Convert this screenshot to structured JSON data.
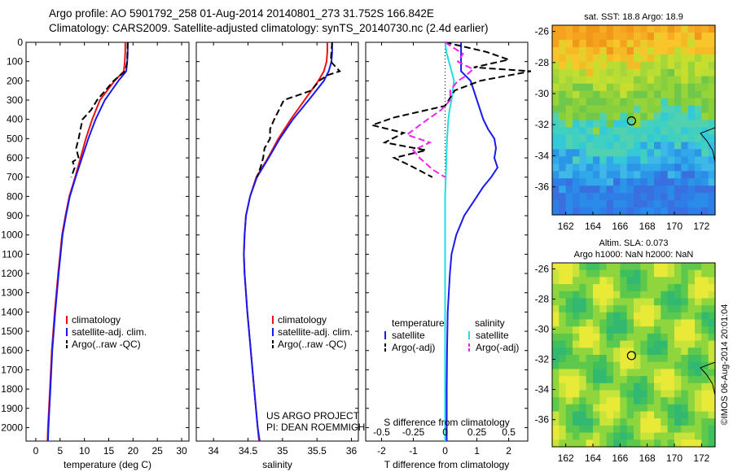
{
  "header": {
    "line1": "Argo profile: AO 5901792_258 01-Aug-2014 20140801_273 31.752S 166.842E",
    "line2": "Climatology: CARS2009. Satellite-adjusted climatology: synTS_20140730.nc (2.4d earlier)"
  },
  "colors": {
    "clim": "#ee1111",
    "satclim": "#1a1aee",
    "argo": "#000000",
    "salsat": "#22dddd",
    "salargo": "#ee22ee"
  },
  "depth_ticks": [
    0,
    100,
    200,
    300,
    400,
    500,
    600,
    700,
    800,
    900,
    1000,
    1100,
    1200,
    1300,
    1400,
    1500,
    1600,
    1700,
    1800,
    1900,
    2000
  ],
  "chart_data": [
    {
      "type": "line",
      "xlabel": "temperature (deg C)",
      "xlim": [
        -2,
        31.5
      ],
      "xticks": [
        0,
        5,
        10,
        15,
        20,
        25,
        30
      ],
      "ylim": [
        2070,
        0
      ],
      "legend": [
        "climatology",
        "satellite-adj. clim.",
        "Argo(..raw -QC)"
      ],
      "series": [
        {
          "name": "climatology",
          "depth": [
            0,
            50,
            100,
            150,
            200,
            300,
            400,
            500,
            600,
            700,
            800,
            900,
            1000,
            1200,
            1400,
            1500,
            1600,
            1800,
            2000,
            2070
          ],
          "values": [
            18.4,
            18.4,
            18.3,
            18.1,
            16.2,
            13.2,
            11.6,
            10.3,
            9.2,
            8.1,
            6.9,
            6.1,
            5.4,
            4.6,
            3.9,
            3.6,
            3.3,
            2.9,
            2.5,
            2.4
          ]
        },
        {
          "name": "satellite-adj. clim.",
          "depth": [
            0,
            50,
            100,
            150,
            200,
            300,
            400,
            500,
            600,
            700,
            800,
            900,
            1000,
            1200,
            1400,
            1500,
            1600,
            1800,
            2000,
            2070
          ],
          "values": [
            18.9,
            18.9,
            18.8,
            18.6,
            17.0,
            14.2,
            12.3,
            10.8,
            9.5,
            8.2,
            7.0,
            6.2,
            5.5,
            4.7,
            4.0,
            3.7,
            3.4,
            3.0,
            2.6,
            2.5
          ]
        },
        {
          "name": "Argo(..raw -QC)",
          "depth": [
            0,
            100,
            150,
            200,
            300,
            350,
            400,
            450,
            500,
            550,
            600,
            620,
            650,
            700
          ],
          "values": [
            18.9,
            18.8,
            18.4,
            16.0,
            12.6,
            11.4,
            9.6,
            9.2,
            8.8,
            8.3,
            8.8,
            7.6,
            8.0,
            7.3
          ]
        }
      ]
    },
    {
      "type": "line",
      "xlabel": "salinity",
      "xlim": [
        33.75,
        36.1
      ],
      "xticks": [
        34,
        34.5,
        35,
        35.5,
        36
      ],
      "ylim": [
        2070,
        0
      ],
      "legend": [
        "climatology",
        "satellite-adj. clim.",
        "Argo(..raw -QC)"
      ],
      "annotations": [
        "US ARGO PROJECT",
        "PI: DEAN ROEMMICH"
      ],
      "series": [
        {
          "name": "climatology",
          "depth": [
            0,
            50,
            100,
            150,
            200,
            300,
            400,
            500,
            600,
            700,
            800,
            900,
            1000,
            1100,
            1200,
            1300,
            1400,
            1600,
            1800,
            2000,
            2070
          ],
          "values": [
            35.65,
            35.65,
            35.64,
            35.6,
            35.52,
            35.32,
            35.12,
            34.94,
            34.79,
            34.62,
            34.53,
            34.47,
            34.45,
            34.44,
            34.45,
            34.47,
            34.49,
            34.54,
            34.59,
            34.64,
            34.66
          ]
        },
        {
          "name": "satellite-adj. clim.",
          "depth": [
            0,
            50,
            100,
            150,
            200,
            300,
            400,
            500,
            600,
            700,
            800,
            900,
            1000,
            1100,
            1200,
            1300,
            1400,
            1600,
            1800,
            2000,
            2070
          ],
          "values": [
            35.72,
            35.72,
            35.71,
            35.67,
            35.6,
            35.38,
            35.15,
            34.96,
            34.8,
            34.63,
            34.53,
            34.47,
            34.45,
            34.44,
            34.45,
            34.47,
            34.49,
            34.54,
            34.59,
            34.64,
            34.67
          ]
        },
        {
          "name": "Argo(..raw -QC)",
          "depth": [
            0,
            100,
            150,
            170,
            200,
            250,
            300,
            350,
            400,
            450,
            500,
            550,
            600,
            650,
            700
          ],
          "values": [
            35.72,
            35.7,
            35.83,
            35.66,
            35.53,
            35.42,
            35.02,
            34.95,
            34.88,
            34.82,
            34.82,
            34.74,
            34.72,
            34.68,
            34.63
          ]
        }
      ]
    },
    {
      "type": "line",
      "xlabel": "T difference from climatology",
      "xlabel_top": "S difference from climatology",
      "xlim": [
        -2.5,
        2.6
      ],
      "xticks": [
        -2,
        -1,
        0,
        1,
        2
      ],
      "xticks_top": [
        "-0.5",
        "-0.25",
        "0",
        "0.25",
        "0.5"
      ],
      "ylim": [
        2070,
        0
      ],
      "legend_titles": [
        "temperature",
        "salinity"
      ],
      "legend": [
        "satellite",
        "Argo(-adj)",
        "satellite",
        "Argo(-adj)"
      ],
      "series": [
        {
          "name": "T satellite",
          "depth": [
            0,
            100,
            150,
            200,
            300,
            400,
            450,
            500,
            550,
            600,
            650,
            700,
            750,
            800,
            900,
            1000,
            1100,
            1200,
            1400,
            1600,
            1800,
            2000,
            2070
          ],
          "values": [
            0.5,
            0.5,
            0.5,
            0.8,
            1.0,
            1.2,
            1.35,
            1.55,
            1.6,
            1.55,
            1.65,
            1.45,
            1.2,
            1.0,
            0.6,
            0.35,
            0.2,
            0.15,
            0.08,
            0.06,
            0.05,
            0.05,
            0.05
          ]
        },
        {
          "name": "T Argo(-adj)",
          "depth": [
            0,
            50,
            90,
            130,
            150,
            200,
            250,
            330,
            390,
            430,
            470,
            520,
            560,
            600,
            640,
            700
          ],
          "values": [
            0,
            1.3,
            2.0,
            0.9,
            2.7,
            1.1,
            0.3,
            0.0,
            -1.6,
            -2.3,
            -1.3,
            -1.9,
            -0.6,
            -1.6,
            -1.1,
            -0.4
          ]
        },
        {
          "name": "S satellite",
          "depth": [
            0,
            50,
            100,
            150,
            200,
            250,
            300,
            350,
            400,
            500,
            600,
            700,
            800,
            1000,
            1500,
            2000,
            2070
          ],
          "values": [
            0.0,
            0.01,
            0.03,
            0.05,
            0.07,
            0.06,
            0.05,
            0.035,
            0.025,
            0.015,
            0.01,
            0.005,
            0.0,
            0.0,
            0.0,
            0.0,
            0.0
          ]
        },
        {
          "name": "S Argo(-adj)",
          "depth": [
            0,
            60,
            100,
            140,
            180,
            200,
            250,
            300,
            350,
            420,
            480,
            520,
            560,
            600,
            660,
            700
          ],
          "values": [
            0,
            0.14,
            0.1,
            0.22,
            0.15,
            0.1,
            0.04,
            0.04,
            -0.03,
            -0.18,
            -0.3,
            -0.12,
            -0.25,
            -0.2,
            -0.1,
            0.0
          ]
        }
      ]
    },
    {
      "type": "heatmap",
      "title": "sat. SST: 18.8 Argo: 18.9",
      "xticks": [
        162,
        164,
        166,
        168,
        170,
        172
      ],
      "yticks": [
        -26,
        -28,
        -30,
        -32,
        -34,
        -36
      ],
      "float_position": [
        166.842,
        -31.752
      ]
    },
    {
      "type": "heatmap",
      "title_line1": "Altim. SLA: 0.073",
      "title_line2": "Argo h1000: NaN h2000: NaN",
      "xticks": [
        162,
        164,
        166,
        168,
        170,
        172
      ],
      "yticks": [
        -26,
        -28,
        -30,
        -32,
        -34,
        -36
      ],
      "float_position": [
        166.842,
        -31.752
      ]
    }
  ],
  "side_label": "©IMOS 06-Aug-2014 20:01:04"
}
